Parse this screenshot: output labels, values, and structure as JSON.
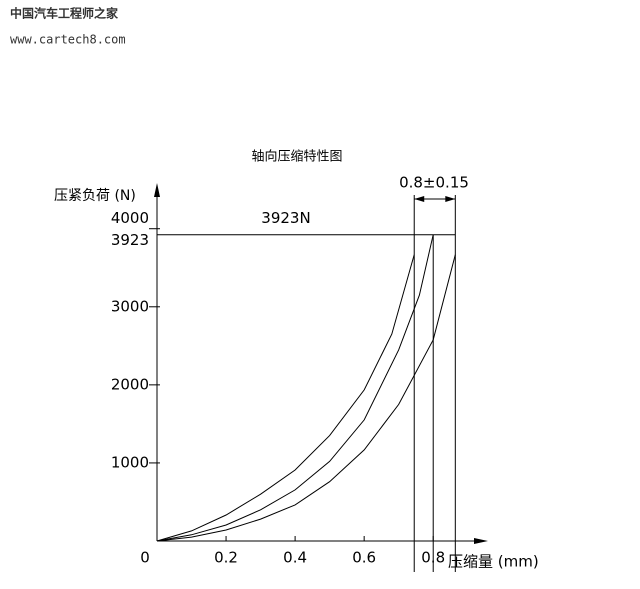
{
  "watermark": {
    "site_name": "中国汽车工程师之家",
    "url": "www.cartech8.com"
  },
  "chart_data": {
    "type": "line",
    "title": "轴向压缩特性图",
    "x_label": "压缩量 (mm)",
    "y_label": "压紧负荷 (N)",
    "annotations": [
      "3923N",
      "0.8±0.15"
    ],
    "xlim": [
      0,
      0.95
    ],
    "ylim": [
      0,
      4560
    ],
    "xticks": [
      0,
      0.2,
      0.4,
      0.6,
      0.8
    ],
    "yticks": [
      1000,
      2000,
      3000,
      3923,
      4000
    ],
    "series": [
      {
        "color": "#000000",
        "x": [
          0,
          0.1,
          0.2,
          0.3,
          0.4,
          0.5,
          0.6,
          0.68,
          0.745
        ],
        "values": [
          0,
          130,
          333,
          600,
          910,
          1350,
          1936,
          2650,
          3667
        ]
      },
      {
        "color": "#000000",
        "x": [
          0,
          0.1,
          0.2,
          0.3,
          0.4,
          0.5,
          0.6,
          0.7,
          0.76,
          0.8
        ],
        "values": [
          0,
          80,
          205,
          400,
          654,
          1020,
          1551,
          2449,
          3150,
          3923
        ]
      },
      {
        "color": "#000000",
        "x": [
          0,
          0.1,
          0.2,
          0.3,
          0.4,
          0.5,
          0.6,
          0.7,
          0.8,
          0.864
        ],
        "values": [
          0,
          50,
          141,
          280,
          462,
          760,
          1167,
          1750,
          2577,
          3667
        ]
      }
    ]
  }
}
